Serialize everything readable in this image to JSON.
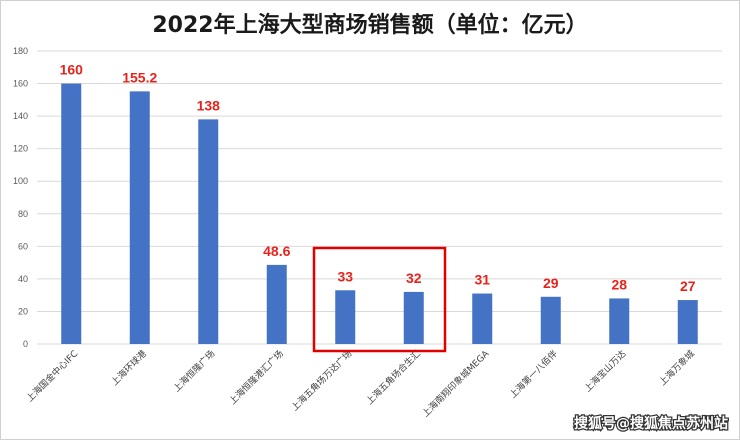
{
  "chart_data": {
    "type": "bar",
    "title": "2022年上海大型商场销售额（单位：亿元）",
    "xlabel": "",
    "ylabel": "",
    "ylim": [
      0,
      180
    ],
    "yticks": [
      0,
      20,
      40,
      60,
      80,
      100,
      120,
      140,
      160,
      180
    ],
    "grid": true,
    "legend": "none",
    "categories": [
      "上海国金中心IFC",
      "上海环球港",
      "上海恒隆广场",
      "上海恒隆港汇广场",
      "上海五角场万达广场",
      "上海五角场合生汇",
      "上海南翔印象城MEGA",
      "上海第一八佰伴",
      "上海宝山万达",
      "上海万象城"
    ],
    "values": [
      160,
      155.2,
      138,
      48.6,
      33,
      32,
      31,
      29,
      28,
      27
    ],
    "data_labels": [
      "160",
      "155.2",
      "138",
      "48.6",
      "33",
      "32",
      "31",
      "29",
      "28",
      "27"
    ],
    "highlight": {
      "categories": [
        "上海五角场万达广场",
        "上海五角场合生汇"
      ],
      "color": "#e00000"
    },
    "colors": {
      "bar": "#4472c4",
      "data_label": "#e8231b",
      "grid": "#d9d9d9"
    }
  },
  "watermark": "搜狐号@搜狐焦点苏州站"
}
